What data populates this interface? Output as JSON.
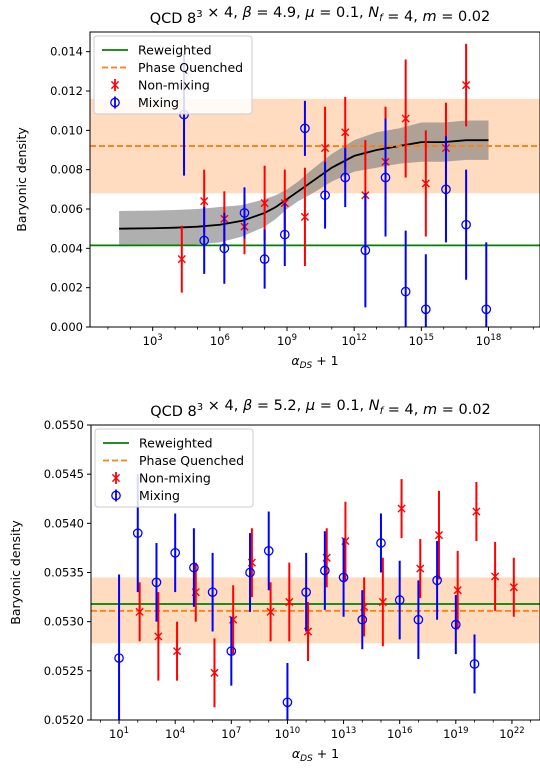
{
  "chart_data": [
    {
      "type": "scatter",
      "title": "QCD 8³ × 4, β = 4.9, μ = 0.1, N_f = 4, m = 0.02",
      "xlabel": "α_DS + 1",
      "ylabel": "Baryonic density",
      "xscale": "log",
      "xlim": [
        0.1,
        1e+20
      ],
      "ylim": [
        0.0,
        0.015
      ],
      "xticks": [
        3,
        6,
        9,
        12,
        15,
        18
      ],
      "yticks": [
        0.0,
        0.002,
        0.004,
        0.006,
        0.008,
        0.01,
        0.012,
        0.014
      ],
      "ytick_labels": [
        "0.000",
        "0.002",
        "0.004",
        "0.006",
        "0.008",
        "0.010",
        "0.012",
        "0.014"
      ],
      "legend": [
        "Reweighted",
        "Phase Quenched",
        "Non-mixing",
        "Mixing"
      ],
      "legend_position": "top-left",
      "reweighted": 0.00415,
      "reweighted_err": 3e-05,
      "phase_quenched": 0.0092,
      "phase_quenched_band": [
        0.0068,
        0.0116
      ],
      "series": [
        {
          "name": "Non-mixing",
          "color": "#ff0000",
          "marker": "x",
          "x": [
            4.3,
            5.3,
            6.2,
            7.1,
            8.0,
            8.9,
            9.8,
            10.7,
            11.6,
            12.5,
            13.4,
            14.3,
            15.2,
            16.1,
            17.0
          ],
          "y": [
            0.00345,
            0.0064,
            0.0055,
            0.0051,
            0.0063,
            0.0063,
            0.0056,
            0.0091,
            0.0099,
            0.0067,
            0.0084,
            0.0106,
            0.0073,
            0.0091,
            0.0123
          ],
          "err": [
            0.0017,
            0.0016,
            0.0014,
            0.0014,
            0.0019,
            0.0017,
            0.0025,
            0.0021,
            0.0018,
            0.0028,
            0.0028,
            0.003,
            0.0027,
            0.0023,
            0.0021
          ]
        },
        {
          "name": "Mixing",
          "color": "#0000ff",
          "marker": "o",
          "x": [
            4.4,
            5.3,
            6.2,
            7.1,
            8.0,
            8.9,
            9.8,
            10.7,
            11.6,
            12.5,
            13.4,
            14.3,
            15.2,
            16.1,
            17.0,
            17.9
          ],
          "y": [
            0.0108,
            0.0044,
            0.004,
            0.0058,
            0.00345,
            0.0047,
            0.0101,
            0.0067,
            0.0076,
            0.0039,
            0.0076,
            0.0018,
            0.0009,
            0.007,
            0.0052,
            0.0009
          ],
          "err": [
            0.0031,
            0.0017,
            0.0018,
            0.0013,
            0.0015,
            0.0016,
            0.0014,
            0.0017,
            0.0015,
            0.0029,
            0.003,
            0.0031,
            0.0028,
            0.0027,
            0.0028,
            0.0034
          ]
        }
      ],
      "fit": {
        "x": [
          1.5,
          3,
          4,
          5,
          6,
          7,
          8,
          8.5,
          9,
          9.5,
          10,
          11,
          12,
          13,
          14,
          15,
          16,
          17,
          18
        ],
        "y": [
          0.005,
          0.00502,
          0.00505,
          0.0051,
          0.0052,
          0.0054,
          0.0058,
          0.0061,
          0.0065,
          0.0069,
          0.0073,
          0.0081,
          0.0087,
          0.009,
          0.0092,
          0.0094,
          0.0094,
          0.0095,
          0.0095
        ],
        "band_half_width": [
          0.0009,
          0.0009,
          0.0009,
          0.0009,
          0.0009,
          0.0008,
          0.0007,
          0.0006,
          0.0005,
          0.0005,
          0.0006,
          0.0007,
          0.0008,
          0.0009,
          0.0009,
          0.001,
          0.001,
          0.001,
          0.001
        ]
      }
    },
    {
      "type": "scatter",
      "title": "QCD 8³ × 4, β = 5.2, μ = 0.1, N_f = 4, m = 0.02",
      "xlabel": "α_DS + 1",
      "ylabel": "Baryonic density",
      "xscale": "log",
      "xlim": [
        -0.5,
        23.5
      ],
      "ylim": [
        0.052,
        0.055
      ],
      "xticks": [
        1,
        4,
        7,
        10,
        13,
        16,
        19,
        22
      ],
      "yticks": [
        0.052,
        0.0525,
        0.053,
        0.0535,
        0.054,
        0.0545,
        0.055
      ],
      "ytick_labels": [
        "0.0520",
        "0.0525",
        "0.0530",
        "0.0535",
        "0.0540",
        "0.0545",
        "0.0550"
      ],
      "legend": [
        "Reweighted",
        "Phase Quenched",
        "Non-mixing",
        "Mixing"
      ],
      "legend_position": "top-left",
      "reweighted": 0.05318,
      "reweighted_err": 3e-05,
      "phase_quenched": 0.05311,
      "phase_quenched_band": [
        0.05278,
        0.05345
      ],
      "series": [
        {
          "name": "Non-mixing",
          "color": "#ff0000",
          "marker": "x",
          "x": [
            2.1,
            3.1,
            4.1,
            5.1,
            6.1,
            7.1,
            8.1,
            9.1,
            10.1,
            11.1,
            12.1,
            13.1,
            14.1,
            15.1,
            16.1,
            17.1,
            18.1,
            19.1,
            20.1,
            21.1,
            22.1
          ],
          "y": [
            0.0531,
            0.05285,
            0.0527,
            0.0533,
            0.05248,
            0.05302,
            0.0536,
            0.0531,
            0.0532,
            0.0529,
            0.05365,
            0.05382,
            0.05315,
            0.0532,
            0.05415,
            0.05354,
            0.05388,
            0.05332,
            0.05412,
            0.05346,
            0.05335
          ],
          "err": [
            0.0003,
            0.00045,
            0.0003,
            0.0003,
            0.00035,
            0.00035,
            0.00035,
            0.0003,
            0.0004,
            0.0003,
            0.0003,
            0.0004,
            0.0003,
            0.00045,
            0.0003,
            0.0003,
            0.00045,
            0.0004,
            0.0003,
            0.00035,
            0.0003
          ]
        },
        {
          "name": "Mixing",
          "color": "#0000ff",
          "marker": "o",
          "x": [
            1.0,
            2.0,
            3.0,
            4.0,
            5.0,
            6.0,
            7.0,
            8.0,
            9.0,
            10.0,
            11.0,
            12.0,
            13.0,
            14.0,
            15.0,
            16.0,
            17.0,
            18.0,
            19.0,
            20.0
          ],
          "y": [
            0.05263,
            0.0539,
            0.0534,
            0.0537,
            0.05355,
            0.0533,
            0.0527,
            0.0535,
            0.05372,
            0.05218,
            0.0533,
            0.05352,
            0.05345,
            0.05302,
            0.0538,
            0.05322,
            0.05302,
            0.05342,
            0.05297,
            0.05257
          ],
          "err": [
            0.00085,
            0.0006,
            0.0004,
            0.0004,
            0.0004,
            0.0004,
            0.00035,
            0.0004,
            0.0004,
            0.0004,
            0.0004,
            0.0004,
            0.0004,
            0.0003,
            0.0003,
            0.0004,
            0.0004,
            0.0004,
            0.0003,
            0.0003
          ]
        }
      ]
    }
  ]
}
